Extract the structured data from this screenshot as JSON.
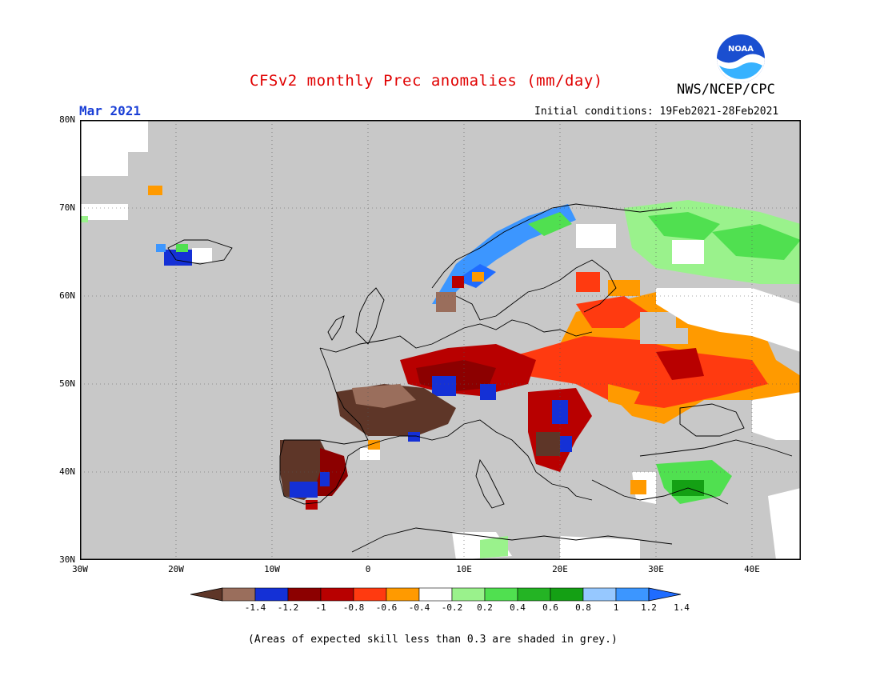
{
  "header": {
    "title": "CFSv2 monthly Prec anomalies (mm/day)",
    "agency": "NWS/NCEP/CPC",
    "logo_text": "NOAA",
    "month": "Mar 2021",
    "initial_conditions": "Initial conditions: 19Feb2021-28Feb2021"
  },
  "axes": {
    "lat_ticks": [
      "80N",
      "70N",
      "60N",
      "50N",
      "40N",
      "30N"
    ],
    "lon_ticks": [
      "30W",
      "20W",
      "10W",
      "0",
      "10E",
      "20E",
      "30E",
      "40E"
    ]
  },
  "legend": {
    "tick_labels": [
      "-1.4",
      "-1.2",
      "-1",
      "-0.8",
      "-0.6",
      "-0.4",
      "-0.2",
      "0.2",
      "0.4",
      "0.6",
      "0.8",
      "1",
      "1.2",
      "1.4"
    ],
    "colors": [
      "#5e3628",
      "#9a6e5c",
      "#1430d6",
      "#8c0000",
      "#b80000",
      "#ff3a10",
      "#ff9a00",
      "#ffffff",
      "#9af28c",
      "#50e050",
      "#24b424",
      "#14a014",
      "#96c8ff",
      "#3c96ff",
      "#1f6cff"
    ]
  },
  "map": {
    "background": "#c8c8c8",
    "grey_meaning": "skill < 0.3",
    "dominant_pattern": "dry anomalies over central/eastern Europe, wet anomalies over Scandinavia coast and NW Russia"
  },
  "footnote": "(Areas of expected skill less than 0.3 are shaded in grey.)"
}
